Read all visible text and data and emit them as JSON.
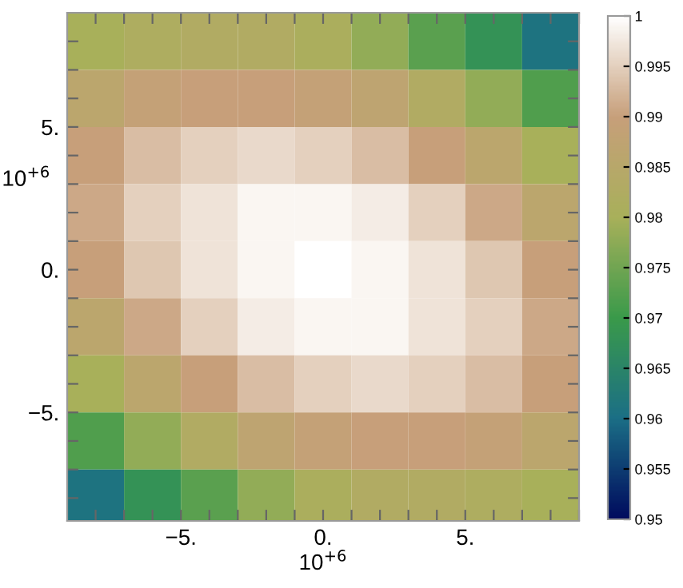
{
  "chart_data": {
    "type": "heatmap",
    "xlabel": "10$^{+6}$",
    "ylabel": "10$^{+6}$",
    "x": [
      -8,
      -6,
      -4,
      -2,
      0,
      2,
      4,
      6,
      8
    ],
    "y": [
      8,
      6,
      4,
      2,
      0,
      -2,
      -4,
      -6,
      -8
    ],
    "xlim": [
      -9,
      9
    ],
    "ylim": [
      -8.8,
      9.0
    ],
    "xticks": [
      {
        "value": -8,
        "label": null
      },
      {
        "value": -7,
        "label": null
      },
      {
        "value": -6,
        "label": null
      },
      {
        "value": -5,
        "label": "−5."
      },
      {
        "value": -4,
        "label": null
      },
      {
        "value": -3,
        "label": null
      },
      {
        "value": -2,
        "label": null
      },
      {
        "value": -1,
        "label": null
      },
      {
        "value": 0,
        "label": "0."
      },
      {
        "value": 1,
        "label": null
      },
      {
        "value": 2,
        "label": null
      },
      {
        "value": 3,
        "label": null
      },
      {
        "value": 4,
        "label": null
      },
      {
        "value": 5,
        "label": "5."
      },
      {
        "value": 6,
        "label": null
      },
      {
        "value": 7,
        "label": null
      },
      {
        "value": 8,
        "label": null
      },
      {
        "value": 9,
        "label": null
      }
    ],
    "yticks": [
      {
        "value": -8,
        "label": null
      },
      {
        "value": -7,
        "label": null
      },
      {
        "value": -6,
        "label": null
      },
      {
        "value": -5,
        "label": "−5."
      },
      {
        "value": -4,
        "label": null
      },
      {
        "value": -3,
        "label": null
      },
      {
        "value": -2,
        "label": null
      },
      {
        "value": -1,
        "label": null
      },
      {
        "value": 0,
        "label": "0."
      },
      {
        "value": 1,
        "label": null
      },
      {
        "value": 2,
        "label": null
      },
      {
        "value": 3,
        "label": null
      },
      {
        "value": 4,
        "label": null
      },
      {
        "value": 5,
        "label": "5."
      },
      {
        "value": 6,
        "label": null
      },
      {
        "value": 7,
        "label": null
      },
      {
        "value": 8,
        "label": null
      }
    ],
    "cells": [
      [
        0.98,
        0.982,
        0.983,
        0.983,
        0.981,
        0.978,
        0.973,
        0.968,
        0.961
      ],
      [
        0.986,
        0.989,
        0.99,
        0.99,
        0.989,
        0.987,
        0.983,
        0.978,
        0.972
      ],
      [
        0.99,
        0.993,
        0.995,
        0.996,
        0.995,
        0.993,
        0.99,
        0.986,
        0.98
      ],
      [
        0.991,
        0.995,
        0.997,
        0.999,
        0.999,
        0.998,
        0.995,
        0.991,
        0.986
      ],
      [
        0.99,
        0.994,
        0.997,
        0.999,
        1.0,
        0.999,
        0.997,
        0.994,
        0.99
      ],
      [
        0.986,
        0.991,
        0.995,
        0.998,
        0.999,
        0.999,
        0.997,
        0.995,
        0.991
      ],
      [
        0.98,
        0.986,
        0.99,
        0.993,
        0.995,
        0.996,
        0.995,
        0.993,
        0.99
      ],
      [
        0.972,
        0.978,
        0.983,
        0.987,
        0.989,
        0.99,
        0.99,
        0.989,
        0.986
      ],
      [
        0.961,
        0.968,
        0.973,
        0.978,
        0.981,
        0.983,
        0.983,
        0.982,
        0.98
      ]
    ],
    "colors": [
      "#000b5e",
      "#1b6f86",
      "#3a9a4a",
      "#a8b05a",
      "#c79f7a",
      "#ffffff"
    ],
    "clim": [
      0.95,
      1
    ],
    "cticks": [
      {
        "value": 0.95,
        "label": "0.95"
      },
      {
        "value": 0.955,
        "label": "0.955"
      },
      {
        "value": 0.96,
        "label": "0.96"
      },
      {
        "value": 0.965,
        "label": "0.965"
      },
      {
        "value": 0.97,
        "label": "0.97"
      },
      {
        "value": 0.975,
        "label": "0.975"
      },
      {
        "value": 0.98,
        "label": "0.98"
      },
      {
        "value": 0.985,
        "label": "0.985"
      },
      {
        "value": 0.99,
        "label": "0.99"
      },
      {
        "value": 0.995,
        "label": "0.995"
      },
      {
        "value": 1,
        "label": "1"
      }
    ]
  }
}
